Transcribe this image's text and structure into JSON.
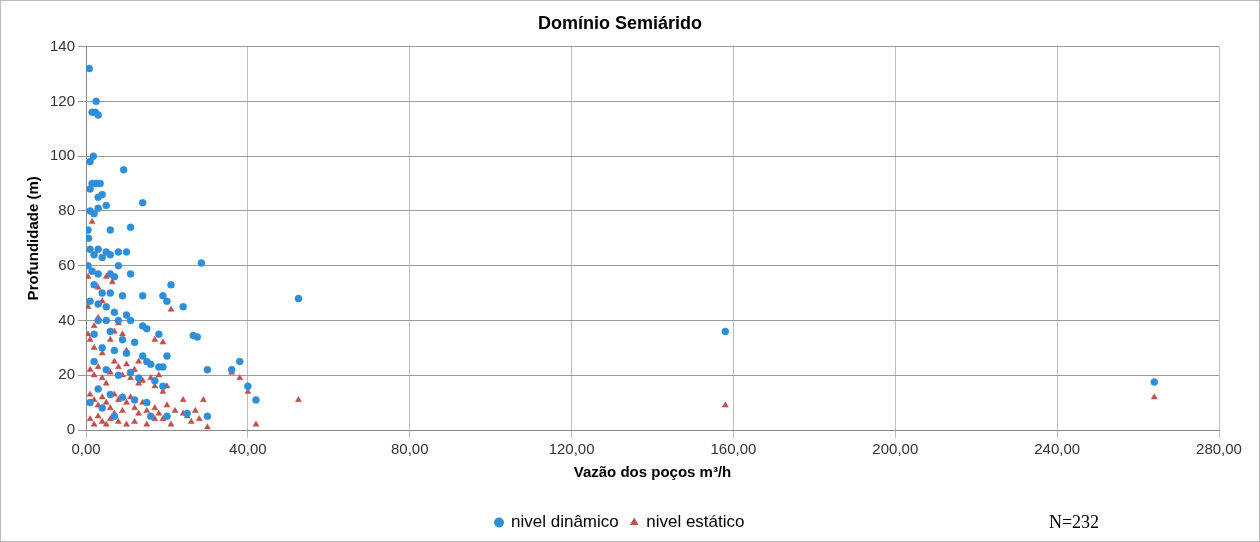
{
  "chart_data": {
    "type": "scatter",
    "title": "Domínio Semiárido",
    "xlabel": "Vazão dos poços m³/h",
    "ylabel": "Profundidade (m)",
    "xlim": [
      0,
      280
    ],
    "xticks": [
      {
        "value": 0,
        "label": "0,00"
      },
      {
        "value": 40,
        "label": "40,00"
      },
      {
        "value": 80,
        "label": "80,00"
      },
      {
        "value": 120,
        "label": "120,00"
      },
      {
        "value": 160,
        "label": "160,00"
      },
      {
        "value": 200,
        "label": "200,00"
      },
      {
        "value": 240,
        "label": "240,00"
      },
      {
        "value": 280,
        "label": "280,00"
      }
    ],
    "ylim": [
      0,
      140
    ],
    "yticks": [
      0,
      20,
      40,
      60,
      80,
      100,
      120,
      140
    ],
    "grid": true,
    "legend": "bottom",
    "annotations": [
      "N=232"
    ],
    "series": [
      {
        "name": "nivel dinâmico",
        "color": "#2e8fd8",
        "marker": "circle",
        "x": [
          0.8,
          2.5,
          1.5,
          2.3,
          3,
          1.8,
          1,
          9.3,
          1.5,
          2.5,
          3.5,
          1,
          3,
          4,
          5,
          14,
          1,
          2,
          3,
          0.5,
          0.6,
          6,
          11,
          1,
          3,
          5,
          8,
          10,
          2,
          4,
          6,
          28.5,
          0.5,
          1.5,
          3,
          6,
          7,
          11,
          8,
          21,
          2,
          4,
          6,
          9,
          14,
          19,
          20,
          24,
          52.5,
          1,
          3,
          5,
          7,
          10,
          3,
          5,
          8,
          11,
          14,
          15,
          18,
          26.5,
          27.5,
          2,
          6,
          9,
          12,
          4,
          7,
          10,
          14,
          15,
          20,
          16,
          18,
          19,
          36,
          38,
          30,
          40,
          42,
          2,
          5,
          8,
          11,
          13,
          17,
          19,
          3,
          6,
          9,
          12,
          15,
          20,
          25,
          30,
          1,
          4,
          7,
          16,
          158,
          264
        ],
        "values": [
          132,
          120,
          116,
          116,
          115,
          100,
          98,
          95,
          90,
          90,
          90,
          88,
          85,
          86,
          82,
          83,
          80,
          79,
          81,
          73,
          70,
          73,
          74,
          66,
          66,
          65,
          65,
          65,
          64,
          63,
          64,
          61,
          60,
          58,
          57,
          57,
          56,
          57,
          60,
          53,
          53,
          50,
          50,
          49,
          49,
          49,
          47,
          45,
          48,
          47,
          46,
          45,
          43,
          42,
          40,
          40,
          40,
          40,
          38,
          37,
          35,
          34.5,
          34,
          35,
          36,
          33,
          32,
          30,
          29,
          28,
          27,
          25,
          27,
          24,
          23,
          23,
          22,
          25,
          22,
          16,
          11,
          25,
          22,
          20,
          21,
          19,
          18,
          16,
          15,
          13,
          12,
          11,
          10,
          5,
          6,
          5,
          10,
          8,
          5,
          5,
          36,
          17.5
        ]
      },
      {
        "name": "nivel estático",
        "color": "#c0504d",
        "marker": "triangle",
        "x": [
          0.5,
          1.5,
          0.5,
          0.5,
          1,
          2,
          3,
          4,
          5,
          3,
          6.5,
          2,
          4,
          6,
          7,
          8,
          9,
          10,
          1,
          2,
          3,
          4,
          5,
          6,
          7,
          8,
          9,
          10,
          11,
          12,
          13,
          14,
          16,
          17,
          18,
          19,
          20,
          21,
          19,
          17,
          13,
          1,
          2,
          3,
          4,
          5,
          6,
          7,
          8,
          9,
          10,
          11,
          12,
          13,
          14,
          15,
          16,
          17,
          18,
          19,
          20,
          21,
          1,
          2,
          3,
          4,
          5,
          6,
          7,
          8,
          10,
          12,
          15,
          17,
          22,
          24,
          25,
          27,
          28,
          29,
          30,
          36,
          38,
          40,
          42,
          52.5,
          158,
          264,
          24,
          26
        ],
        "values": [
          56,
          76,
          45,
          35,
          33,
          38,
          41,
          47,
          56,
          52,
          54,
          30,
          28,
          33,
          36,
          39,
          35,
          29,
          22,
          20,
          23,
          19,
          17,
          21,
          25,
          23,
          20,
          24,
          19,
          22,
          17,
          18,
          19,
          16,
          20,
          14,
          16,
          44,
          32,
          33,
          25,
          13,
          11,
          9,
          12,
          10,
          8,
          13,
          11,
          7,
          10,
          12,
          8,
          6,
          10,
          7,
          5,
          8,
          6,
          4,
          9,
          2,
          4,
          2,
          5,
          3,
          2,
          4,
          6,
          3,
          2,
          3,
          2,
          4,
          7,
          11,
          5,
          7,
          4,
          11,
          1,
          21,
          19,
          14,
          2,
          11,
          9,
          12,
          6,
          3
        ]
      }
    ]
  }
}
